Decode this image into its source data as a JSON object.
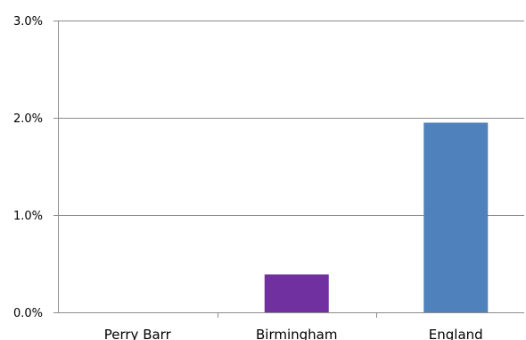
{
  "chart_data": {
    "type": "bar",
    "categories": [
      "Perry Barr",
      "Birmingham",
      "England"
    ],
    "values": [
      0.0,
      0.39,
      1.95
    ],
    "bar_colors": [
      "#7030a0",
      "#7030a0",
      "#4f81bd"
    ],
    "ylim": [
      0,
      3
    ],
    "yticks": [
      0,
      1,
      2,
      3
    ],
    "ytick_labels": [
      "0.0%",
      "1.0%",
      "2.0%",
      "3.0%"
    ],
    "grid": true,
    "legend": "none",
    "title": "",
    "xlabel": "",
    "ylabel": ""
  }
}
